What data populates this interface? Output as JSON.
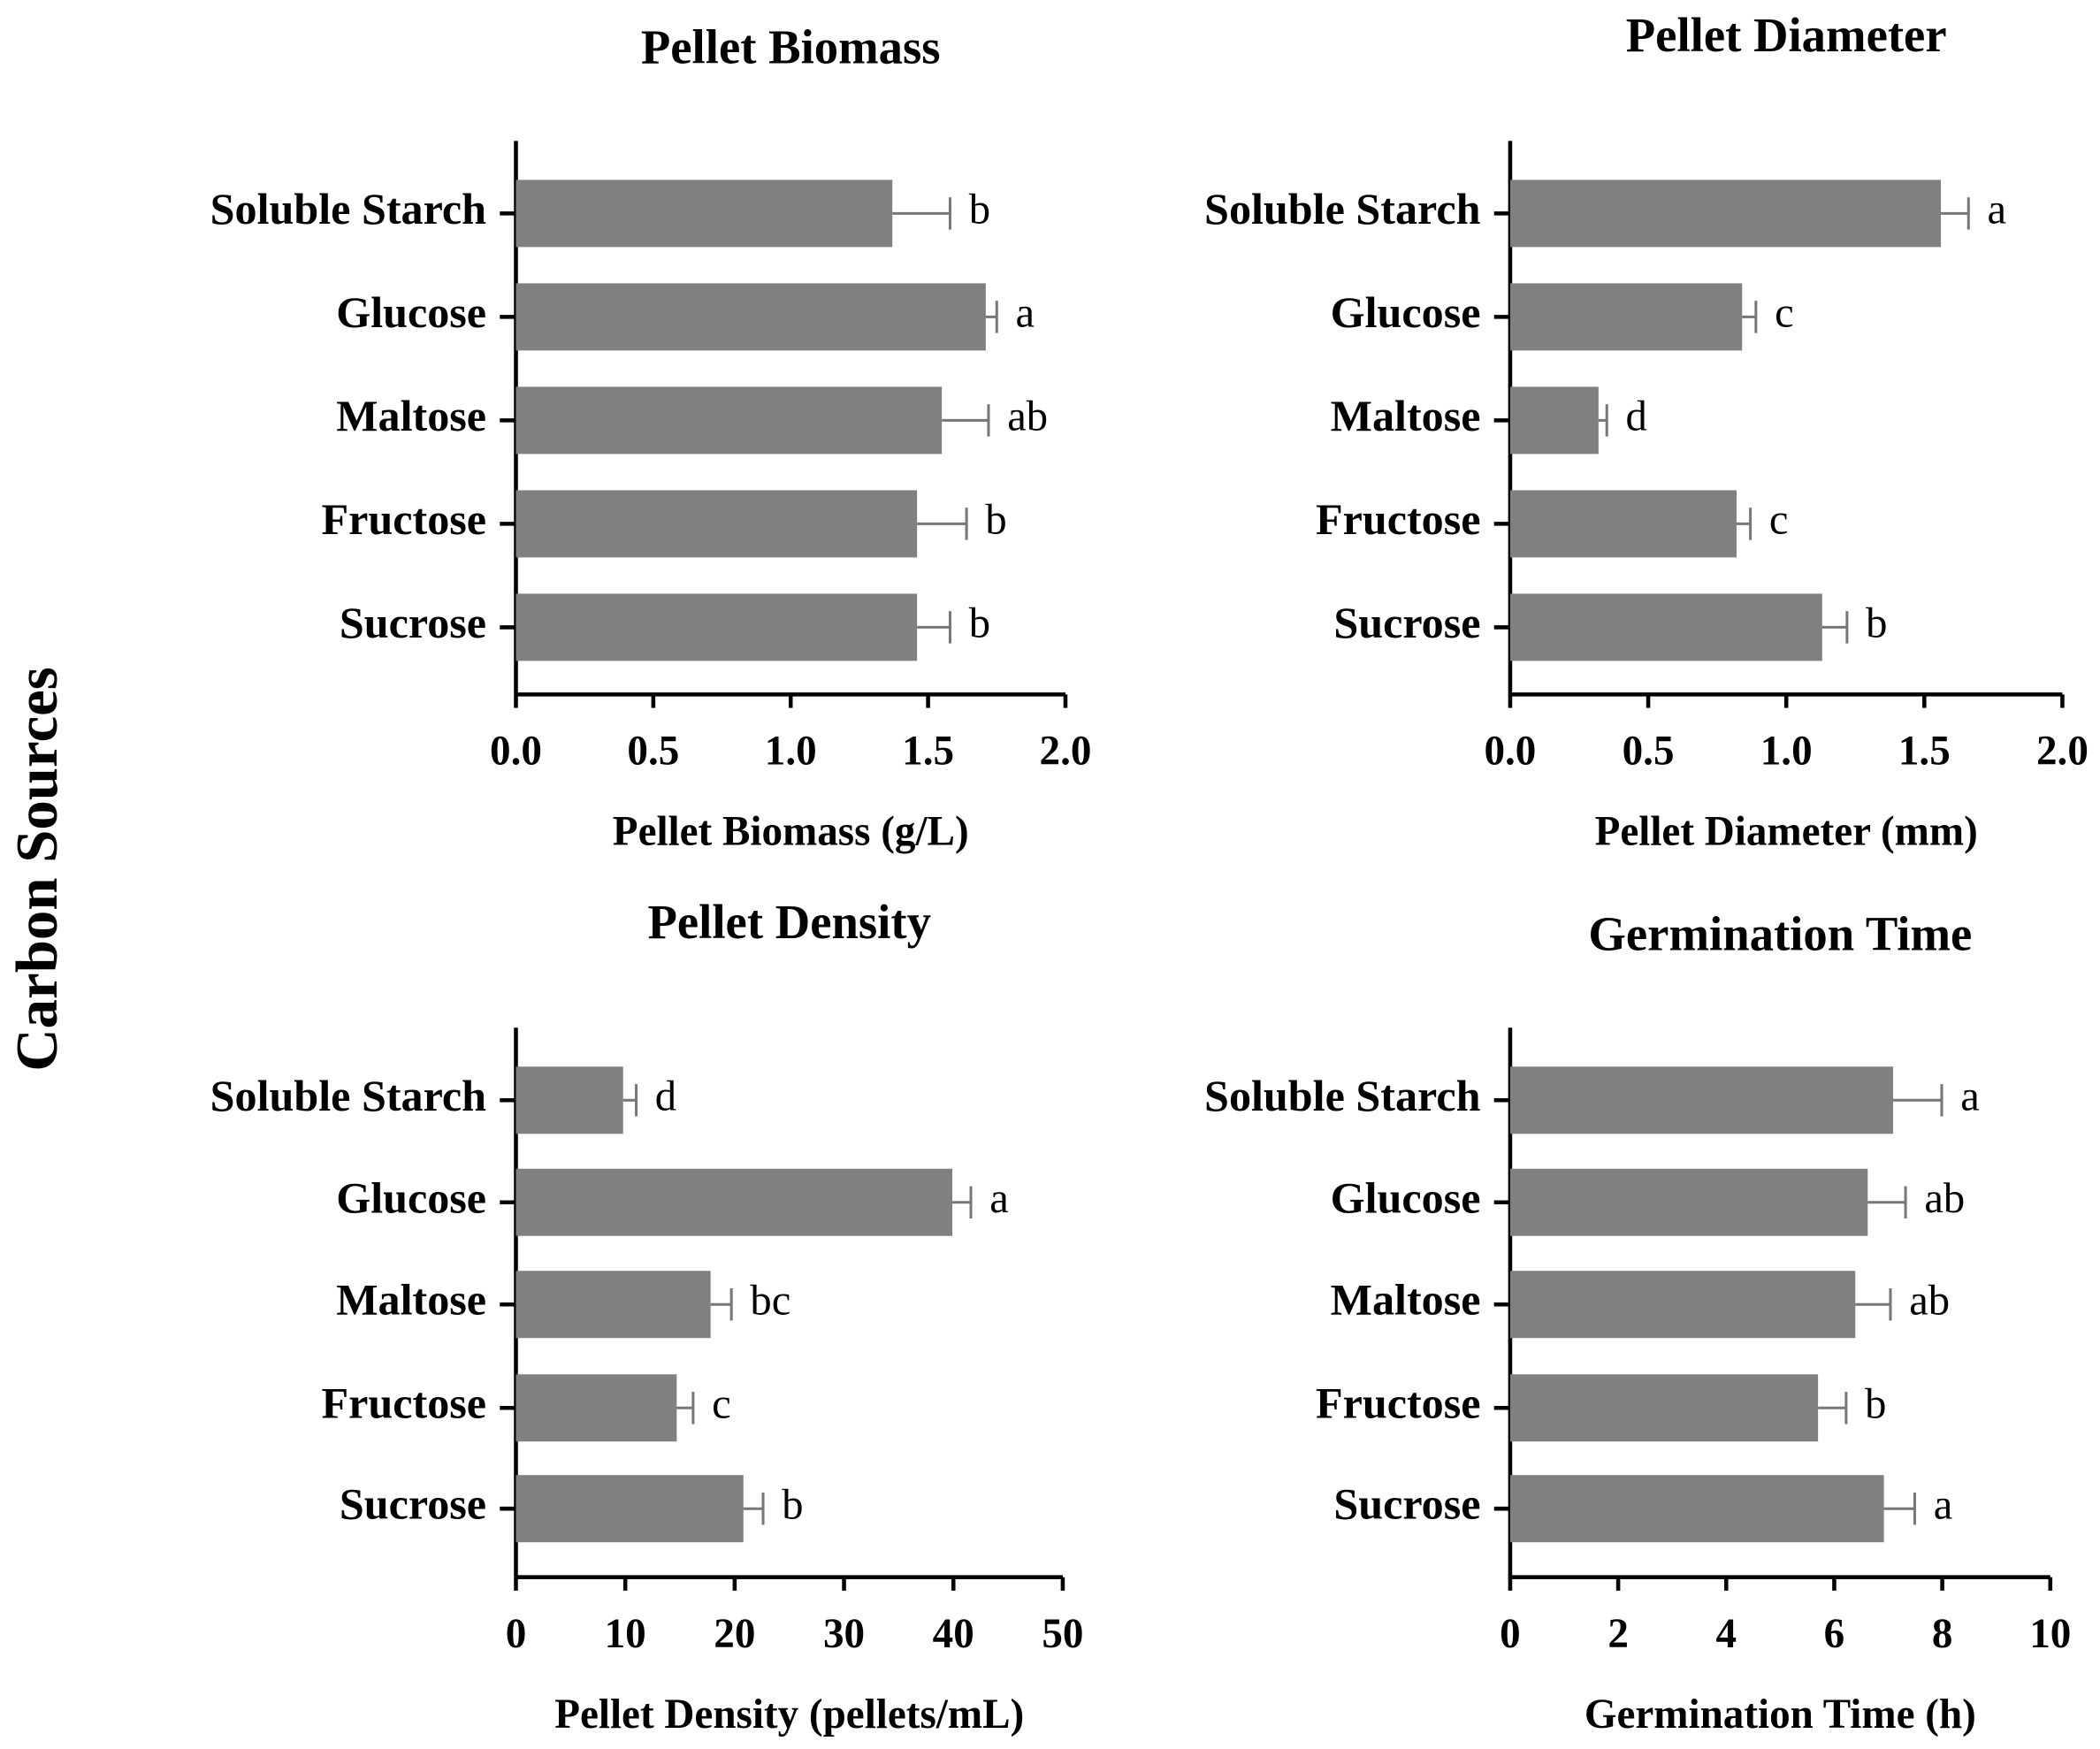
{
  "ylabel": "Carbon Sources",
  "chart_data": [
    {
      "type": "bar",
      "orientation": "horizontal",
      "title": "Pellet Biomass",
      "xlabel": "Pellet Biomass (g/L)",
      "categories": [
        "Soluble Starch",
        "Glucose",
        "Maltose",
        "Fructose",
        "Sucrose"
      ],
      "values": [
        1.37,
        1.71,
        1.55,
        1.46,
        1.46
      ],
      "errors": [
        0.21,
        0.04,
        0.17,
        0.18,
        0.12
      ],
      "annotations": [
        "b",
        "a",
        "ab",
        "b",
        "b"
      ],
      "color": "#808080",
      "xlim": [
        0,
        2
      ],
      "xticks": [
        {
          "value": 0,
          "label": "0.0"
        },
        0.5,
        {
          "value": 1,
          "label": "1.0"
        },
        1.5,
        {
          "value": 2,
          "label": "2.0"
        }
      ]
    },
    {
      "type": "bar",
      "orientation": "horizontal",
      "title": "Pellet Diameter",
      "xlabel": "Pellet Diameter (mm)",
      "categories": [
        "Soluble Starch",
        "Glucose",
        "Maltose",
        "Fructose",
        "Sucrose"
      ],
      "values": [
        1.56,
        0.84,
        0.32,
        0.82,
        1.13
      ],
      "errors": [
        0.1,
        0.05,
        0.03,
        0.05,
        0.09
      ],
      "annotations": [
        "a",
        "c",
        "d",
        "c",
        "b"
      ],
      "color": "#808080",
      "xlim": [
        0,
        2
      ],
      "xticks": [
        {
          "value": 0,
          "label": "0.0"
        },
        0.5,
        {
          "value": 1,
          "label": "1.0"
        },
        1.5,
        {
          "value": 2,
          "label": "2.0"
        }
      ]
    },
    {
      "type": "bar",
      "orientation": "horizontal",
      "title": "Pellet Density",
      "xlabel": "Pellet Density (pellets/mL)",
      "categories": [
        "Soluble Starch",
        "Glucose",
        "Maltose",
        "Fructose",
        "Sucrose"
      ],
      "values": [
        9.8,
        39.9,
        17.8,
        14.7,
        20.8
      ],
      "errors": [
        1.2,
        1.7,
        1.9,
        1.5,
        1.8
      ],
      "annotations": [
        "d",
        "a",
        "bc",
        "c",
        "b"
      ],
      "color": "#808080",
      "xlim": [
        0,
        50
      ],
      "xticks": [
        0,
        10,
        20,
        30,
        40,
        50
      ]
    },
    {
      "type": "bar",
      "orientation": "horizontal",
      "title": "Germination Time",
      "xlabel": "Germination Time (h)",
      "categories": [
        "Soluble Starch",
        "Glucose",
        "Maltose",
        "Fructose",
        "Sucrose"
      ],
      "values": [
        7.09,
        6.62,
        6.39,
        5.7,
        6.92
      ],
      "errors": [
        0.9,
        0.7,
        0.65,
        0.52,
        0.57
      ],
      "annotations": [
        "a",
        "ab",
        "ab",
        "b",
        "a"
      ],
      "color": "#808080",
      "xlim": [
        0,
        10
      ],
      "xticks": [
        0,
        2,
        4,
        6,
        8,
        10
      ]
    }
  ]
}
